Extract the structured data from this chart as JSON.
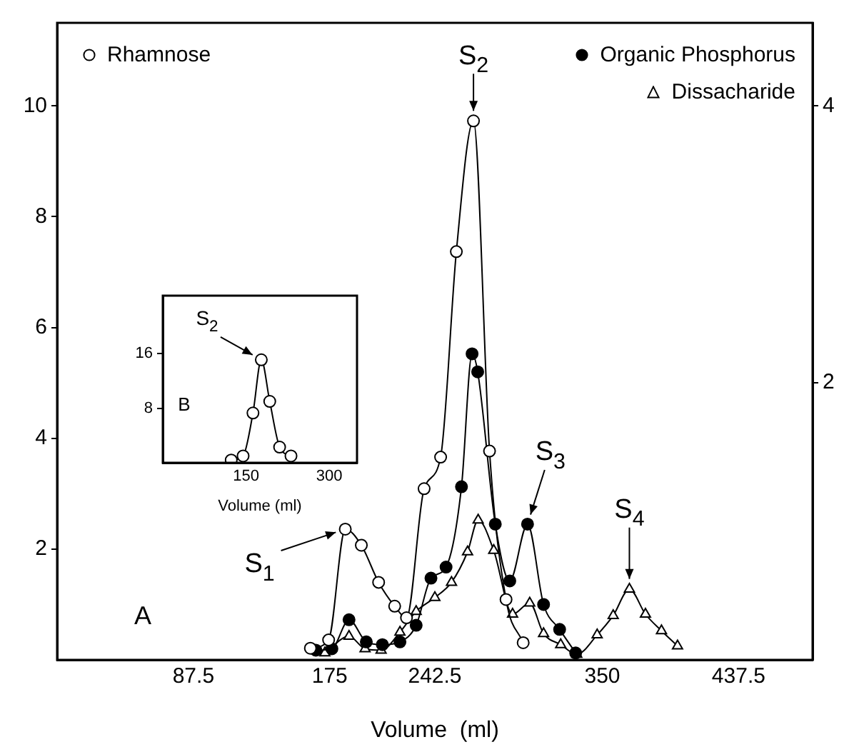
{
  "chart_data": [
    {
      "type": "line",
      "xlabel": "Volume  (ml)",
      "xlim": [
        0,
        485
      ],
      "xticks": [
        87.5,
        175,
        242.5,
        350,
        437.5
      ],
      "ylim": [
        0,
        11.5
      ],
      "yticks": [
        2,
        4,
        6,
        8,
        10
      ],
      "y2lim": [
        0,
        4.6
      ],
      "y2ticks": [
        2,
        4
      ],
      "grid": false,
      "legend": "top right",
      "line_style": "solid",
      "series": [
        {
          "name": "Rhamnose",
          "color": "#000000",
          "marker": "circle",
          "x": [
            162.6,
            174.3,
            185,
            195.3,
            206.4,
            216.7,
            224.3,
            235.6,
            246.2,
            256.3,
            267.3,
            277.6,
            288.2,
            299.2
          ],
          "values": [
            0.21,
            0.36,
            2.36,
            2.07,
            1.4,
            0.97,
            0.76,
            3.09,
            3.66,
            7.37,
            9.73,
            3.77,
            1.09,
            0.31
          ]
        },
        {
          "name": "Organic Phosphorus",
          "color": "#000000",
          "marker": "circle",
          "axis": "y2",
          "x": [
            166.1,
            176.4,
            187.4,
            198.5,
            208.8,
            220.1,
            230.5,
            240,
            249.7,
            259.6,
            266.4,
            270,
            281.3,
            290.6,
            302,
            312.3,
            322.6,
            332.9
          ],
          "values": [
            0.07,
            0.08,
            0.29,
            0.13,
            0.11,
            0.13,
            0.25,
            0.59,
            0.67,
            1.25,
            2.21,
            2.08,
            0.98,
            0.57,
            0.98,
            0.4,
            0.22,
            0.05
          ]
        },
        {
          "name": "Dissacharide",
          "color": "#000000",
          "marker": "triangle",
          "axis": "y2",
          "x": [
            171.9,
            187.4,
            197.7,
            208,
            220.1,
            230.5,
            242.5,
            253.2,
            263.5,
            270.3,
            280.3,
            292.4,
            303.4,
            312.3,
            323.3,
            333.6,
            346.7,
            357,
            367.4,
            377.7,
            388,
            398.3
          ],
          "values": [
            0.05,
            0.17,
            0.08,
            0.07,
            0.2,
            0.35,
            0.45,
            0.56,
            0.78,
            1.01,
            0.79,
            0.33,
            0.41,
            0.19,
            0.11,
            0.04,
            0.18,
            0.32,
            0.51,
            0.33,
            0.21,
            0.1
          ]
        }
      ],
      "annotations": [
        {
          "text": "S$_{1}$",
          "x": 185,
          "y": 2.36
        },
        {
          "text": "S$_{2}$",
          "x": 267.3,
          "y": 9.73
        },
        {
          "text": "S$_{3}$",
          "x": 302,
          "y": 2.45
        },
        {
          "text": "S$_{4}$",
          "x": 367.4,
          "y": 1.28
        },
        "A"
      ]
    },
    {
      "type": "line",
      "xlabel": "Volume (ml)",
      "xlim": [
        0,
        350
      ],
      "xticks": [
        150,
        300
      ],
      "ylim": [
        0,
        24.5
      ],
      "yticks": [
        8,
        16
      ],
      "grid": false,
      "marker": "circle",
      "x": [
        123.3,
        144.7,
        162.5,
        177.5,
        192.7,
        210.5,
        231
      ],
      "values": [
        0.4,
        1.0,
        7.3,
        15.1,
        9.0,
        2.3,
        1.0
      ],
      "annotations": [
        {
          "text": "S$_{2}$",
          "x": 177.5,
          "y": 15.1
        },
        "B"
      ]
    }
  ]
}
